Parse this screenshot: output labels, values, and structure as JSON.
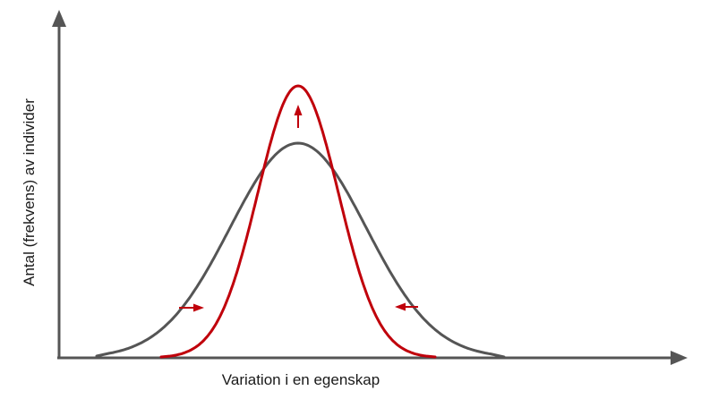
{
  "axes": {
    "x_label": "Variation i en egenskap",
    "y_label": "Antal (frekvens) av individer"
  },
  "curves": {
    "original": {
      "color": "#555555"
    },
    "selected": {
      "color": "#c0000b"
    }
  },
  "arrows": {
    "color": "#c0000b",
    "axis_color": "#555555"
  }
}
